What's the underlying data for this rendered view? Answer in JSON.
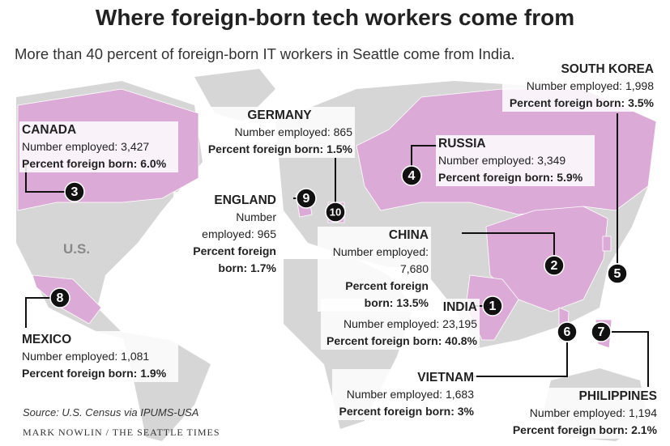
{
  "title": "Where foreign-born tech workers come from",
  "subtitle": "More than 40 percent of foreign-born IT workers in Seattle come from India.",
  "map_label": "U.S.",
  "source": "Source: U.S. Census via IPUMS-USA",
  "credit": "MARK NOWLIN / THE SEATTLE TIMES",
  "countries": [
    {
      "rank": 1,
      "name": "INDIA",
      "employed": "Number employed: 23,195",
      "percent_label": "Percent foreign born:",
      "percent": "40.8%"
    },
    {
      "rank": 2,
      "name": "CHINA",
      "employed": "Number employed: 7,680",
      "percent_label": "Percent foreign born:",
      "percent": "13.5%"
    },
    {
      "rank": 3,
      "name": "CANADA",
      "employed": "Number employed: 3,427",
      "percent_label": "Percent foreign born:",
      "percent": "6.0%"
    },
    {
      "rank": 4,
      "name": "RUSSIA",
      "employed": "Number employed: 3,349",
      "percent_label": "Percent foreign born:",
      "percent": "5.9%"
    },
    {
      "rank": 5,
      "name": "SOUTH KOREA",
      "employed": "Number employed: 1,998",
      "percent_label": "Percent foreign born:",
      "percent": "3.5%"
    },
    {
      "rank": 6,
      "name": "VIETNAM",
      "employed": "Number employed: 1,683",
      "percent_label": "Percent foreign born:",
      "percent": "3%"
    },
    {
      "rank": 7,
      "name": "PHILIPPINES",
      "employed": "Number employed: 1,194",
      "percent_label": "Percent foreign born:",
      "percent": "2.1%"
    },
    {
      "rank": 8,
      "name": "MEXICO",
      "employed": "Number employed: 1,081",
      "percent_label": "Percent foreign born:",
      "percent": "1.9%"
    },
    {
      "rank": 9,
      "name": "ENGLAND",
      "employed": "Number employed: 965",
      "percent_label": "Percent foreign born:",
      "percent": "1.7%"
    },
    {
      "rank": 10,
      "name": "GERMANY",
      "employed": "Number employed: 865",
      "percent_label": "Percent foreign born:",
      "percent": "1.5%"
    }
  ]
}
